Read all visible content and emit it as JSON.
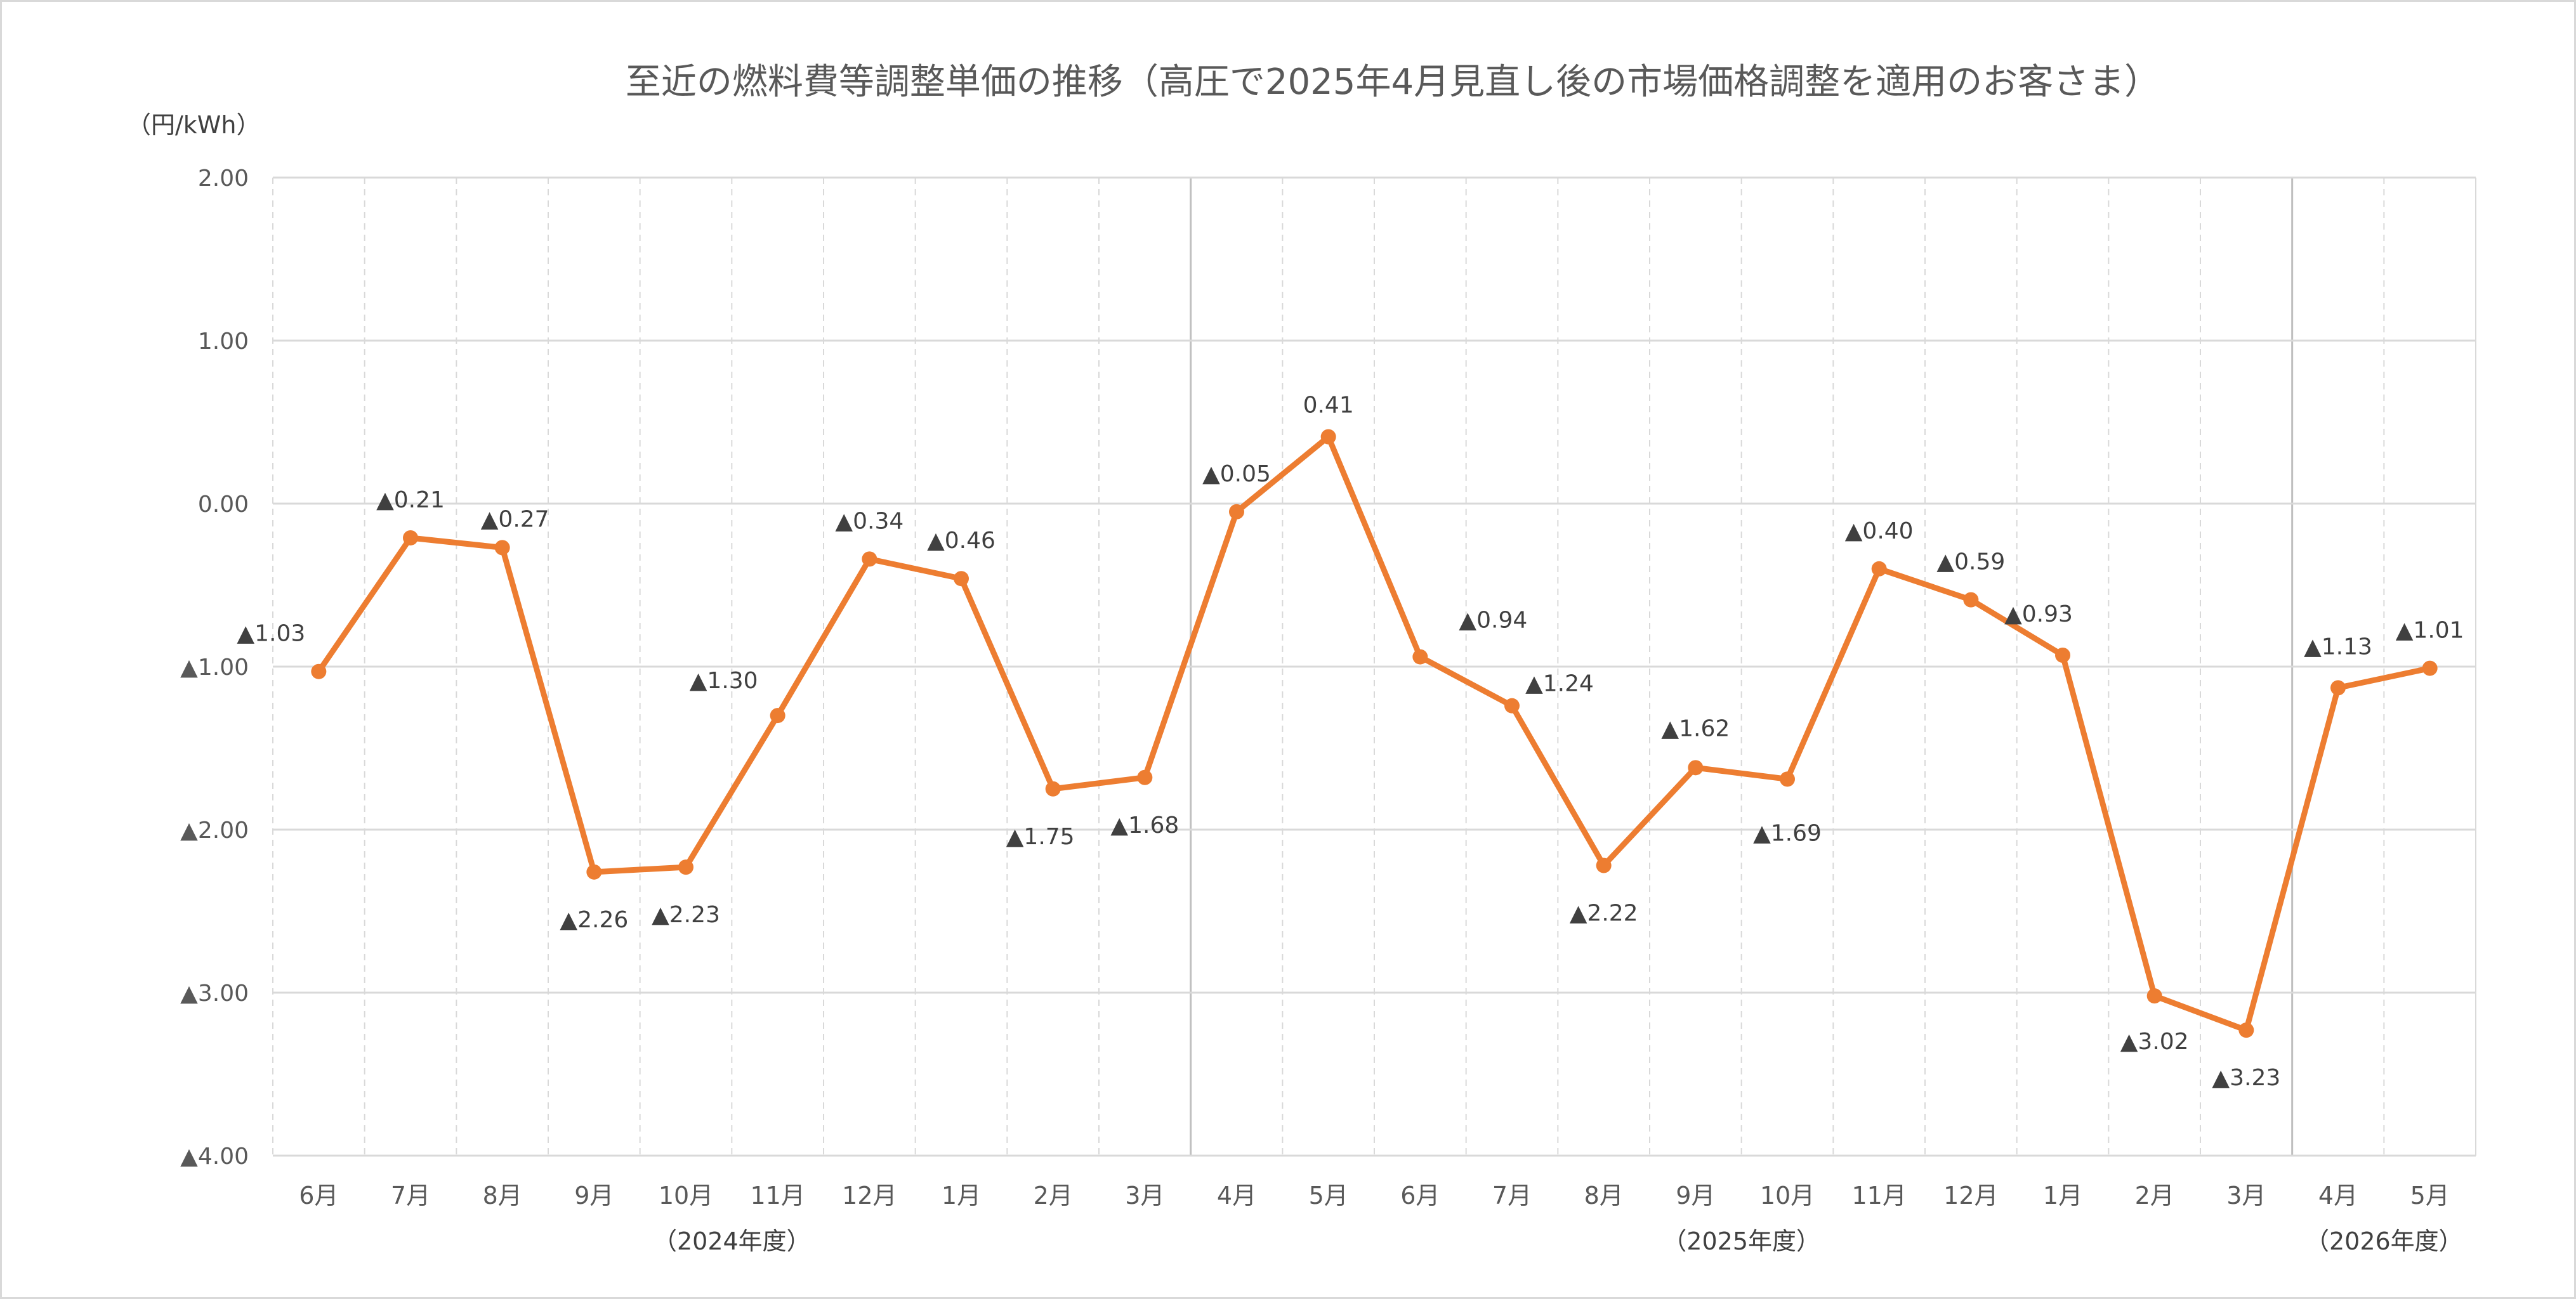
{
  "chart_data": {
    "type": "line",
    "title": "至近の燃料費等調整単価の推移（高圧で2025年4月見直し後の市場価格調整を適用のお客さま）",
    "unit_label": "（円/kWh）",
    "ylim": [
      -4.0,
      2.0
    ],
    "yticks": [
      2.0,
      1.0,
      0.0,
      -1.0,
      -2.0,
      -3.0,
      -4.0
    ],
    "ytick_labels": [
      "2.00",
      "1.00",
      "0.00",
      "▲1.00",
      "▲2.00",
      "▲3.00",
      "▲4.00"
    ],
    "categories": [
      "6月",
      "7月",
      "8月",
      "9月",
      "10月",
      "11月",
      "12月",
      "1月",
      "2月",
      "3月",
      "4月",
      "5月",
      "6月",
      "7月",
      "8月",
      "9月",
      "10月",
      "11月",
      "12月",
      "1月",
      "2月",
      "3月",
      "4月",
      "5月"
    ],
    "series": [
      {
        "color": "#ed7d31",
        "values": [
          -1.03,
          -0.21,
          -0.27,
          -2.26,
          -2.23,
          -1.3,
          -0.34,
          -0.46,
          -1.75,
          -1.68,
          -0.05,
          0.41,
          -0.94,
          -1.24,
          -2.22,
          -1.62,
          -1.69,
          -0.4,
          -0.59,
          -0.93,
          -3.02,
          -3.23,
          -1.13,
          -1.01
        ],
        "data_labels": [
          "▲1.03",
          "▲0.21",
          "▲0.27",
          "▲2.26",
          "▲2.23",
          "▲1.30",
          "▲0.34",
          "▲0.46",
          "▲1.75",
          "▲1.68",
          "▲0.05",
          "0.41",
          "▲0.94",
          "▲1.24",
          "▲2.22",
          "▲1.62",
          "▲1.69",
          "▲0.40",
          "▲0.59",
          "▲0.93",
          "▲3.02",
          "▲3.23",
          "▲1.13",
          "▲1.01"
        ]
      }
    ],
    "fiscal_years": [
      {
        "label": "（2024年度）",
        "first": 0,
        "last": 9
      },
      {
        "label": "（2025年度）",
        "first": 10,
        "last": 21
      },
      {
        "label": "（2026年度）",
        "first": 22,
        "last": 23
      }
    ],
    "grid": true
  }
}
